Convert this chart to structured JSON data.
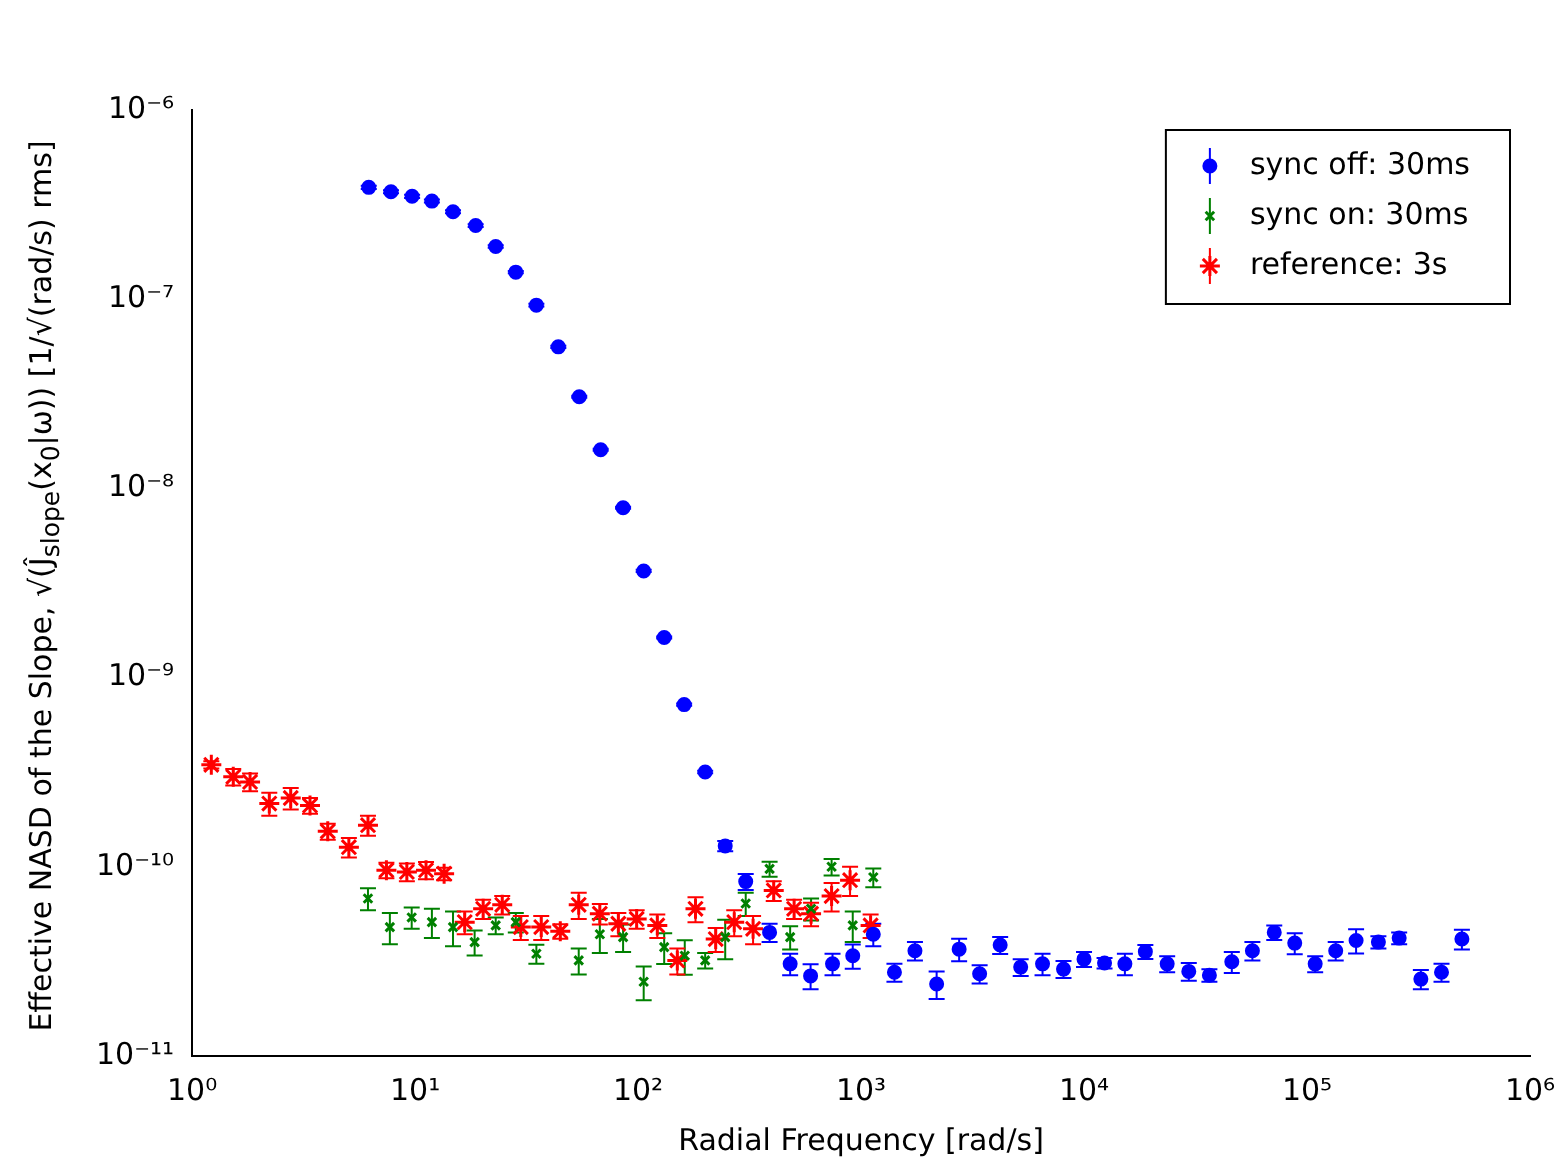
{
  "chart_data": {
    "type": "scatter",
    "xlabel": "Radial Frequency [rad/s]",
    "ylabel": "Effective NASD of the Slope, √(Ĵ$_{slope}$(x$_{0}$|ω)) [1/√(rad/s) rms]",
    "log": "xy",
    "xlim": [
      1,
      1000000
    ],
    "ylim": [
      1e-11,
      1e-06
    ],
    "xticks": [
      {
        "value": 1,
        "label": "10⁰"
      },
      {
        "value": 10,
        "label": "10¹"
      },
      {
        "value": 100,
        "label": "10²"
      },
      {
        "value": 1000,
        "label": "10³"
      },
      {
        "value": 10000,
        "label": "10⁴"
      },
      {
        "value": 100000,
        "label": "10⁵"
      },
      {
        "value": 1000000,
        "label": "10⁶"
      }
    ],
    "yticks": [
      {
        "value": 1e-11,
        "label": "10⁻¹¹"
      },
      {
        "value": 1e-10,
        "label": "10⁻¹⁰"
      },
      {
        "value": 1e-09,
        "label": "10⁻⁹"
      },
      {
        "value": 1e-08,
        "label": "10⁻⁸"
      },
      {
        "value": 1e-07,
        "label": "10⁻⁷"
      },
      {
        "value": 1e-06,
        "label": "10⁻⁶"
      }
    ],
    "grid": false,
    "legend": "top right",
    "series": [
      {
        "name": "sync off: 30ms",
        "color": "#0000ff",
        "marker": "circle",
        "x": [
          6.2,
          7.8,
          9.7,
          11.9,
          14.8,
          18.7,
          23,
          28.3,
          35,
          43.9,
          54.5,
          68,
          85.7,
          106,
          131,
          161,
          200,
          246,
          304,
          389,
          481,
          594,
          745,
          918,
          1135,
          1412,
          1745,
          2183,
          2754,
          3403,
          4207,
          5200,
          6516,
          8091,
          10000,
          12360,
          15250,
          18840,
          23600,
          29500,
          36500,
          46000,
          56900,
          71300,
          88100,
          108800,
          134500,
          166000,
          209000,
          259000,
          324000,
          401000,
          495000
        ],
        "values": [
          3.9e-07,
          3.7e-07,
          3.5e-07,
          3.3e-07,
          2.9e-07,
          2.45e-07,
          1.9e-07,
          1.39e-07,
          9.3e-08,
          5.6e-08,
          3.05e-08,
          1.6e-08,
          7.9e-09,
          3.66e-09,
          1.63e-09,
          7.2e-10,
          3.17e-10,
          1.29e-10,
          8.35e-11,
          4.5e-11,
          3.07e-11,
          2.65e-11,
          3.07e-11,
          3.39e-11,
          4.4e-11,
          2.77e-11,
          3.6e-11,
          2.4e-11,
          3.67e-11,
          2.72e-11,
          3.86e-11,
          2.95e-11,
          3.07e-11,
          2.88e-11,
          3.25e-11,
          3.1e-11,
          3.07e-11,
          3.56e-11,
          3.07e-11,
          2.8e-11,
          2.67e-11,
          3.15e-11,
          3.6e-11,
          4.5e-11,
          3.95e-11,
          3.07e-11,
          3.6e-11,
          4.08e-11,
          4e-11,
          4.2e-11,
          2.55e-11,
          2.77e-11,
          4.15e-11
        ],
        "errors": [
          8e-09,
          7e-09,
          7e-09,
          6e-09,
          5e-09,
          4e-09,
          3e-09,
          2e-09,
          1.5e-09,
          8e-10,
          4e-10,
          2e-10,
          1e-10,
          5e-11,
          2e-11,
          1e-11,
          5e-12,
          8e-12,
          8e-12,
          5e-12,
          4e-12,
          4e-12,
          4e-12,
          5e-12,
          6e-12,
          3e-12,
          4e-12,
          4e-12,
          5e-12,
          3e-12,
          4e-12,
          3e-12,
          4e-12,
          3e-12,
          3e-12,
          2e-12,
          4e-12,
          3e-12,
          3e-12,
          3e-12,
          2e-12,
          4e-12,
          4e-12,
          4e-12,
          5e-12,
          3e-12,
          4e-12,
          6e-12,
          3e-12,
          3e-12,
          3e-12,
          3e-12,
          5e-12
        ]
      },
      {
        "name": "sync on: 30ms",
        "color": "#008000",
        "marker": "cross",
        "x": [
          6.15,
          7.71,
          9.66,
          11.9,
          14.8,
          18.5,
          23,
          28.3,
          35,
          54.2,
          67.4,
          85.7,
          106,
          131,
          162,
          200,
          246,
          304,
          389,
          481,
          597,
          738,
          918,
          1135
        ],
        "values": [
          6.8e-11,
          4.8e-11,
          5.4e-11,
          5.1e-11,
          4.8e-11,
          4e-11,
          4.9e-11,
          5.1e-11,
          3.47e-11,
          3.2e-11,
          4.4e-11,
          4.25e-11,
          2.47e-11,
          3.76e-11,
          3.39e-11,
          3.2e-11,
          4.25e-11,
          6.4e-11,
          9.75e-11,
          4.25e-11,
          6e-11,
          1e-10,
          4.9e-11,
          8.8e-11
        ],
        "errors": [
          9e-12,
          9e-12,
          7e-12,
          9e-12,
          1e-11,
          6e-12,
          5e-12,
          6e-12,
          4e-12,
          5e-12,
          9e-12,
          7e-12,
          5e-12,
          7e-12,
          7e-12,
          3e-12,
          1e-11,
          9e-12,
          9e-12,
          6e-12,
          8e-12,
          1e-11,
          9e-12,
          1e-11
        ]
      },
      {
        "name": "reference: 3s",
        "color": "#ff0000",
        "x": [
          1.22,
          1.53,
          1.82,
          2.22,
          2.77,
          3.38,
          4.06,
          5.05,
          6.15,
          7.44,
          9.19,
          11.2,
          13.5,
          16.7,
          20.2,
          24.6,
          29.8,
          36.8,
          44.8,
          54.2,
          67.4,
          81.6,
          98.6,
          122,
          150,
          181,
          223,
          270,
          328,
          406,
          501,
          597,
          738,
          893,
          1104
        ],
        "values": [
          3.46e-10,
          2.99e-10,
          2.81e-10,
          2.16e-10,
          2.31e-10,
          2.11e-10,
          1.54e-10,
          1.27e-10,
          1.66e-10,
          9.6e-11,
          9.4e-11,
          9.6e-11,
          9.2e-11,
          5.1e-11,
          6e-11,
          6.3e-11,
          4.8e-11,
          4.8e-11,
          4.57e-11,
          6.3e-11,
          5.65e-11,
          5e-11,
          5.3e-11,
          4.9e-11,
          3.2e-11,
          6e-11,
          4.15e-11,
          5.1e-11,
          4.7e-11,
          7.5e-11,
          6e-11,
          5.65e-11,
          7e-11,
          8.5e-11,
          4.9e-11
        ],
        "errors": [
          1.5e-11,
          3e-11,
          3e-11,
          3e-11,
          3e-11,
          2e-11,
          1.5e-11,
          1.5e-11,
          2e-11,
          9e-12,
          1e-11,
          1e-11,
          7e-12,
          7e-12,
          7e-12,
          7e-12,
          7e-12,
          7e-12,
          4e-12,
          1e-11,
          7e-12,
          7e-12,
          6e-12,
          7e-12,
          5e-12,
          9e-12,
          6e-12,
          8e-12,
          8e-12,
          9e-12,
          7e-12,
          8e-12,
          1.2e-11,
          1.5e-11,
          7e-12
        ]
      }
    ]
  }
}
